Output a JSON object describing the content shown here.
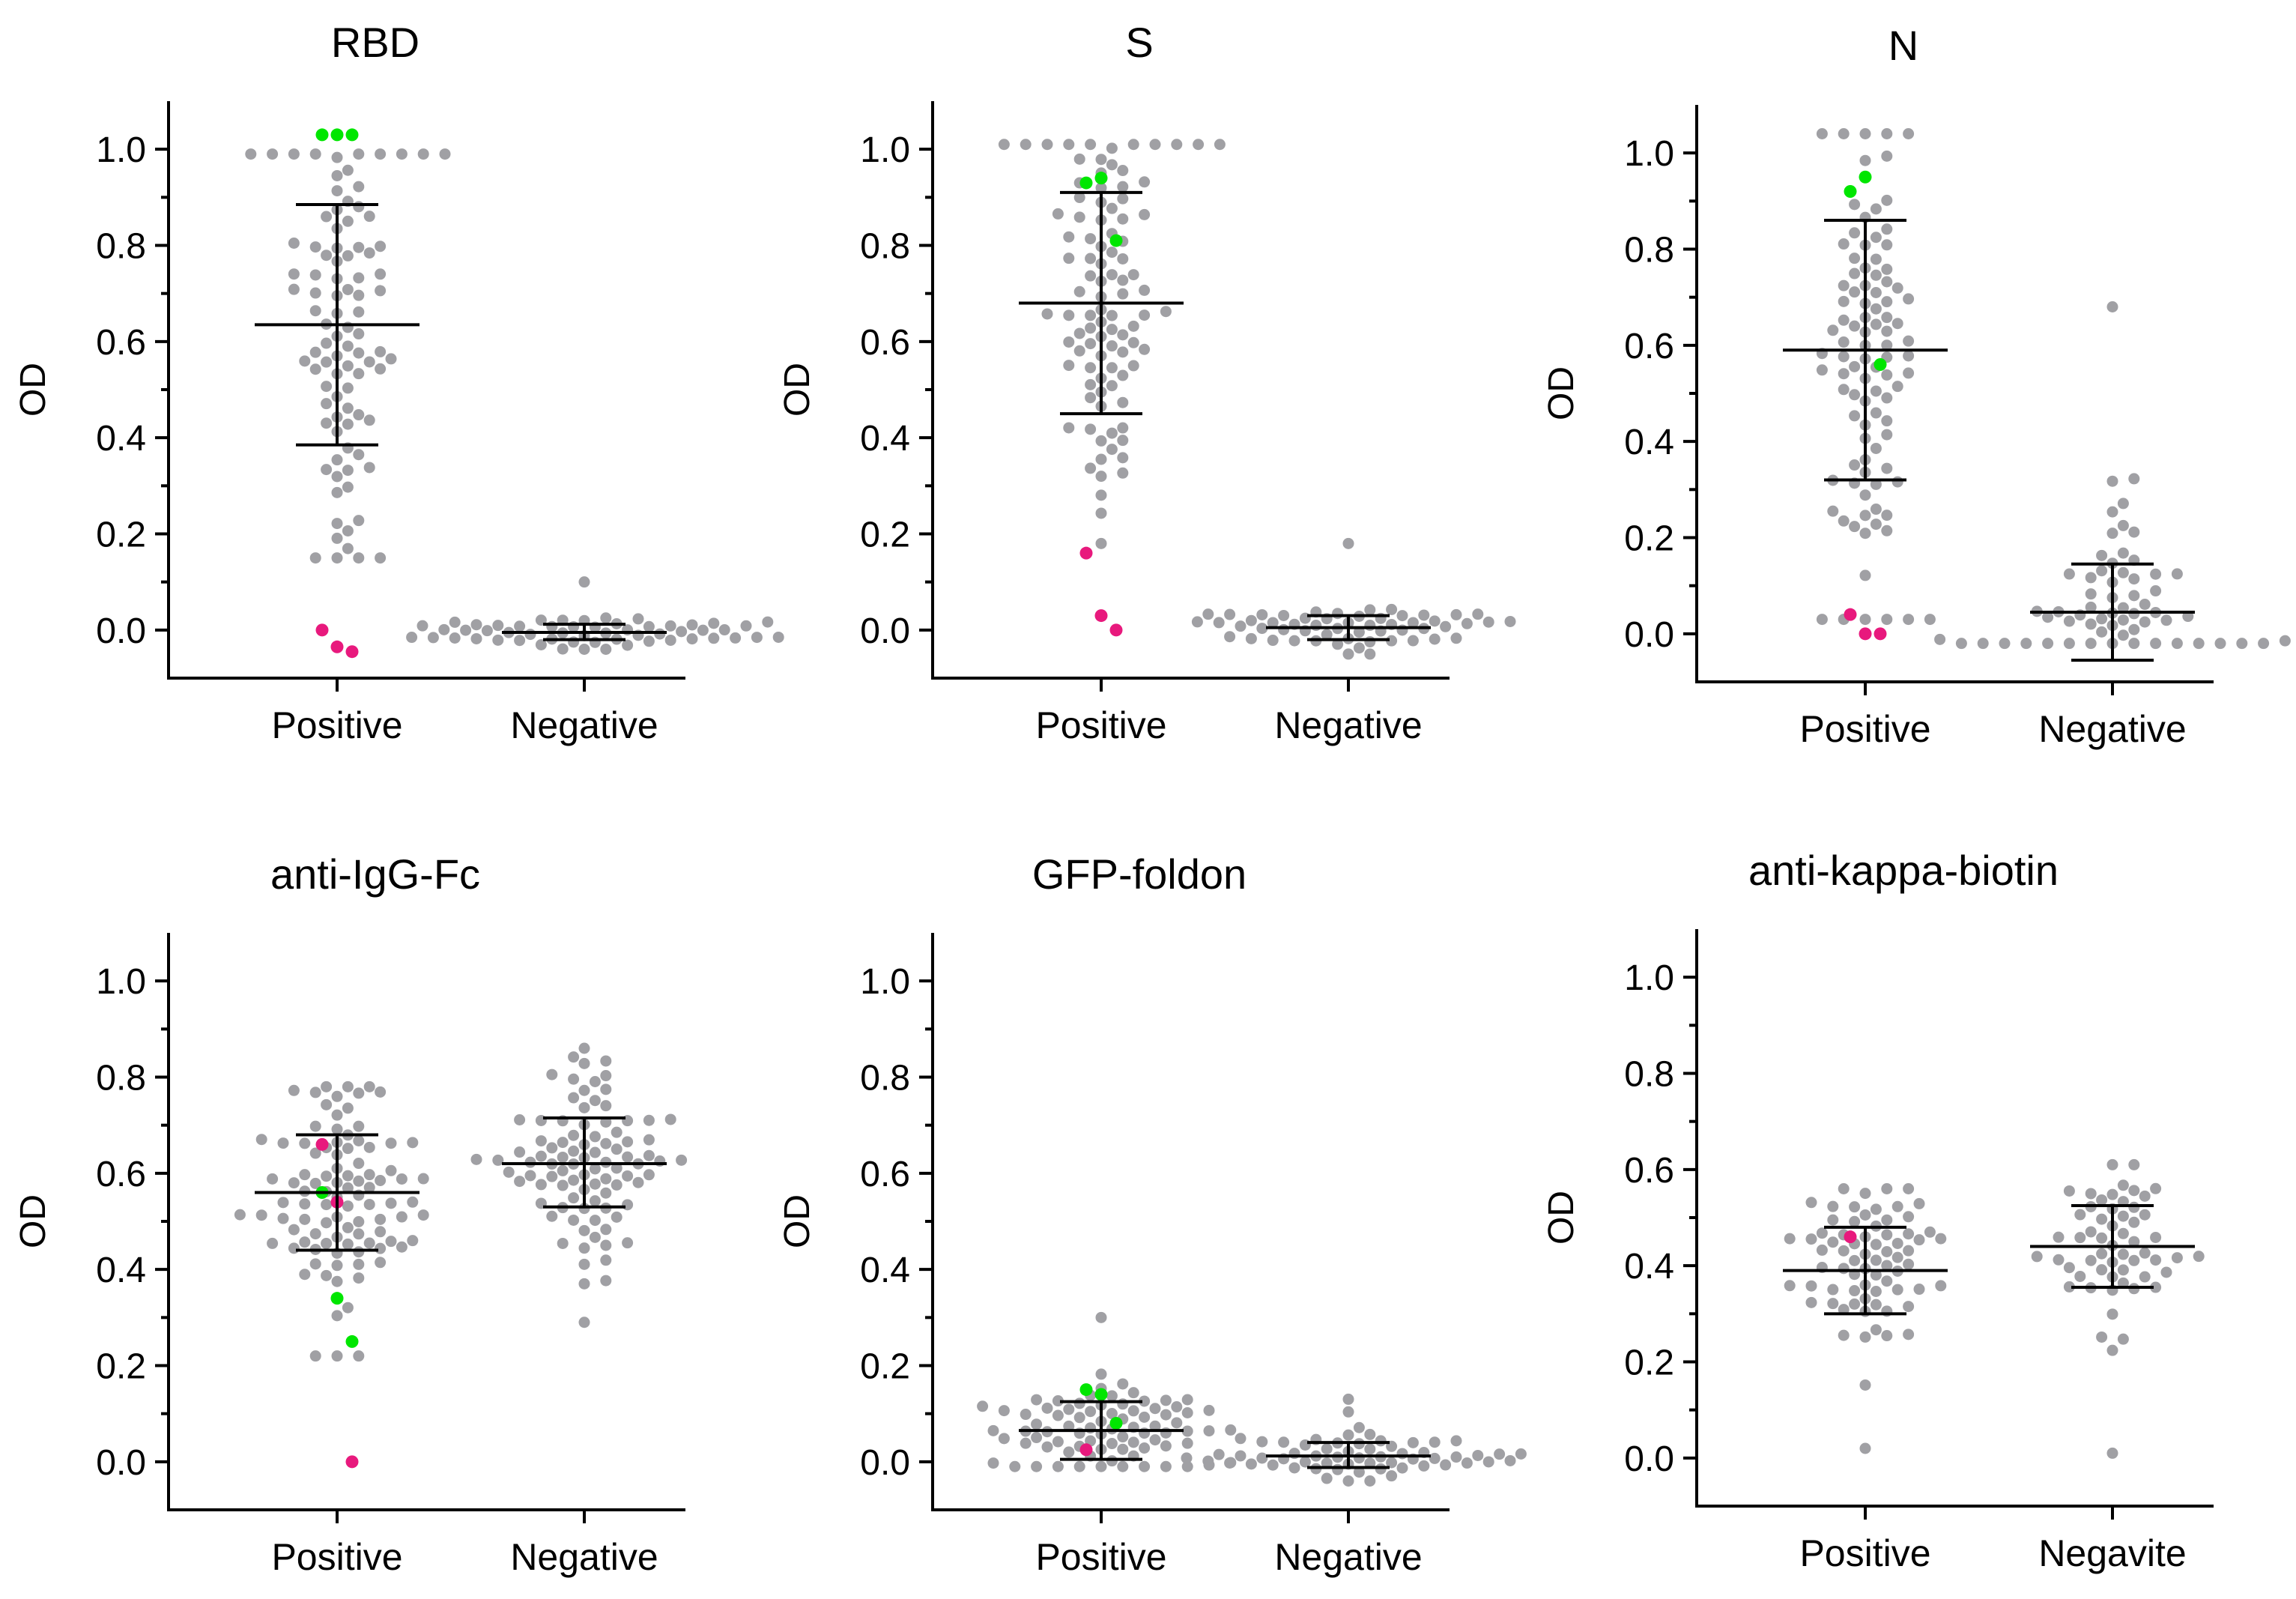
{
  "colors": {
    "point": "#a0a0a4",
    "highlight_green": "#00e600",
    "highlight_pink": "#e8197d"
  },
  "chart_data": [
    {
      "type": "scatter",
      "title": "RBD",
      "xlabel": "",
      "ylabel": "OD",
      "categories": [
        "Positive",
        "Negative"
      ],
      "ylim": [
        -0.1,
        1.1
      ],
      "yticks": [
        "0.0",
        "0.2",
        "0.4",
        "0.6",
        "0.8",
        "1.0"
      ],
      "groups": [
        {
          "name": "Positive",
          "mean": 0.635,
          "sd_upper": 0.885,
          "sd_lower": 0.385,
          "n": 90,
          "min": 0.15,
          "max": 0.99,
          "highlight_green": [
            1.03,
            1.03,
            1.03
          ],
          "highlight_pink": [
            0.0,
            -0.035,
            -0.045
          ]
        },
        {
          "name": "Negative",
          "mean": -0.005,
          "sd_upper": 0.012,
          "sd_lower": -0.02,
          "n": 55,
          "min": -0.04,
          "max": 0.1,
          "highlight_green": [],
          "highlight_pink": []
        }
      ]
    },
    {
      "type": "scatter",
      "title": "S",
      "xlabel": "",
      "ylabel": "OD",
      "categories": [
        "Positive",
        "Negative"
      ],
      "ylim": [
        -0.1,
        1.1
      ],
      "yticks": [
        "0.0",
        "0.2",
        "0.4",
        "0.6",
        "0.8",
        "1.0"
      ],
      "groups": [
        {
          "name": "Positive",
          "mean": 0.68,
          "sd_upper": 0.91,
          "sd_lower": 0.45,
          "n": 95,
          "min": 0.18,
          "max": 1.01,
          "highlight_green": [
            0.93,
            0.94,
            0.81
          ],
          "highlight_pink": [
            0.16,
            0.03,
            0.0
          ]
        },
        {
          "name": "Negative",
          "mean": 0.005,
          "sd_upper": 0.03,
          "sd_lower": -0.02,
          "n": 55,
          "min": -0.05,
          "max": 0.18,
          "highlight_green": [],
          "highlight_pink": []
        }
      ]
    },
    {
      "type": "scatter",
      "title": "N",
      "xlabel": "",
      "ylabel": "OD",
      "categories": [
        "Positive",
        "Negative"
      ],
      "ylim": [
        -0.1,
        1.1
      ],
      "yticks": [
        "0.0",
        "0.2",
        "0.4",
        "0.6",
        "0.8",
        "1.0"
      ],
      "groups": [
        {
          "name": "Positive",
          "mean": 0.59,
          "sd_upper": 0.86,
          "sd_lower": 0.32,
          "n": 95,
          "min": 0.03,
          "max": 1.04,
          "highlight_green": [
            0.92,
            0.95,
            0.56
          ],
          "highlight_pink": [
            0.04,
            0.0,
            0.0
          ]
        },
        {
          "name": "Negative",
          "mean": 0.045,
          "sd_upper": 0.145,
          "sd_lower": -0.055,
          "n": 60,
          "min": -0.02,
          "max": 0.68,
          "highlight_green": [],
          "highlight_pink": []
        }
      ]
    },
    {
      "type": "scatter",
      "title": "anti-IgG-Fc",
      "xlabel": "",
      "ylabel": "OD",
      "categories": [
        "Positive",
        "Negative"
      ],
      "ylim": [
        -0.1,
        1.1
      ],
      "yticks": [
        "0.0",
        "0.2",
        "0.4",
        "0.6",
        "0.8",
        "1.0"
      ],
      "groups": [
        {
          "name": "Positive",
          "mean": 0.56,
          "sd_upper": 0.68,
          "sd_lower": 0.44,
          "n": 95,
          "min": 0.22,
          "max": 0.78,
          "highlight_green": [
            0.56,
            0.34,
            0.25
          ],
          "highlight_pink": [
            0.66,
            0.54,
            0.0
          ]
        },
        {
          "name": "Negative",
          "mean": 0.62,
          "sd_upper": 0.715,
          "sd_lower": 0.53,
          "n": 90,
          "min": 0.29,
          "max": 0.86,
          "highlight_green": [],
          "highlight_pink": []
        }
      ]
    },
    {
      "type": "scatter",
      "title": "GFP-foldon",
      "xlabel": "",
      "ylabel": "OD",
      "categories": [
        "Positive",
        "Negative"
      ],
      "ylim": [
        -0.1,
        1.1
      ],
      "yticks": [
        "0.0",
        "0.2",
        "0.4",
        "0.6",
        "0.8",
        "1.0"
      ],
      "groups": [
        {
          "name": "Positive",
          "mean": 0.065,
          "sd_upper": 0.125,
          "sd_lower": 0.005,
          "n": 80,
          "min": -0.01,
          "max": 0.3,
          "highlight_green": [
            0.15,
            0.14,
            0.08
          ],
          "highlight_pink": [
            0.025
          ]
        },
        {
          "name": "Negative",
          "mean": 0.012,
          "sd_upper": 0.04,
          "sd_lower": -0.012,
          "n": 60,
          "min": -0.04,
          "max": 0.13,
          "highlight_green": [],
          "highlight_pink": []
        }
      ]
    },
    {
      "type": "scatter",
      "title": "anti-kappa-biotin",
      "xlabel": "",
      "ylabel": "OD",
      "categories": [
        "Positive",
        "Negavite"
      ],
      "ylim": [
        -0.1,
        1.1
      ],
      "yticks": [
        "0.0",
        "0.2",
        "0.4",
        "0.6",
        "0.8",
        "1.0"
      ],
      "groups": [
        {
          "name": "Positive",
          "mean": 0.39,
          "sd_upper": 0.48,
          "sd_lower": 0.3,
          "n": 70,
          "min": 0.02,
          "max": 0.56,
          "highlight_green": [],
          "highlight_pink": [
            0.46
          ]
        },
        {
          "name": "Negavite",
          "mean": 0.44,
          "sd_upper": 0.525,
          "sd_lower": 0.355,
          "n": 55,
          "min": 0.01,
          "max": 0.61,
          "highlight_green": [],
          "highlight_pink": []
        }
      ]
    }
  ]
}
